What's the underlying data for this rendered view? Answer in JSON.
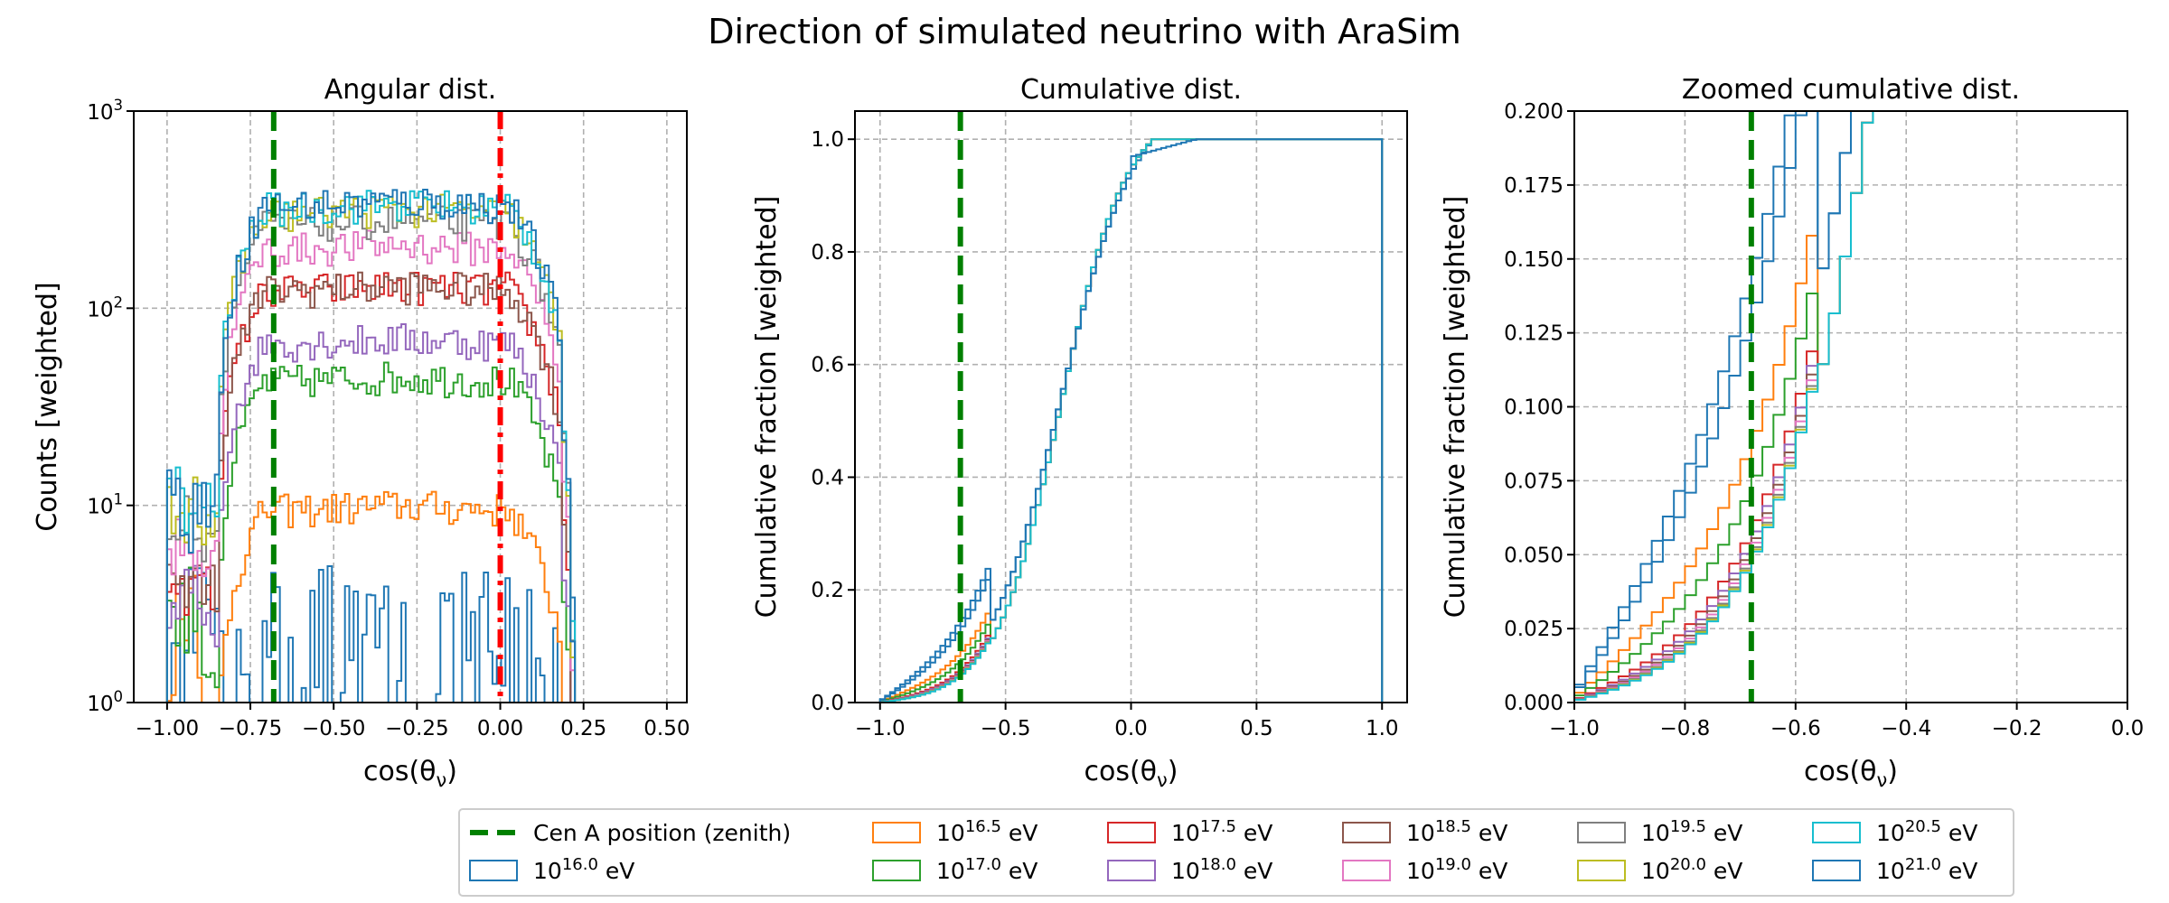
{
  "figure_title": "Direction of simulated neutrino with AraSim",
  "legend": {
    "cen_a_label": "Cen A position (zenith)",
    "entries": [
      {
        "base": "10",
        "exp": "16.0",
        "unit": " eV",
        "color": "#1f77b4"
      },
      {
        "base": "10",
        "exp": "16.5",
        "unit": " eV",
        "color": "#ff7f0e"
      },
      {
        "base": "10",
        "exp": "17.0",
        "unit": " eV",
        "color": "#2ca02c"
      },
      {
        "base": "10",
        "exp": "17.5",
        "unit": " eV",
        "color": "#d62728"
      },
      {
        "base": "10",
        "exp": "18.0",
        "unit": " eV",
        "color": "#9467bd"
      },
      {
        "base": "10",
        "exp": "18.5",
        "unit": " eV",
        "color": "#8c564b"
      },
      {
        "base": "10",
        "exp": "19.0",
        "unit": " eV",
        "color": "#e377c2"
      },
      {
        "base": "10",
        "exp": "19.5",
        "unit": " eV",
        "color": "#7f7f7f"
      },
      {
        "base": "10",
        "exp": "20.0",
        "unit": " eV",
        "color": "#bcbd22"
      },
      {
        "base": "10",
        "exp": "20.5",
        "unit": " eV",
        "color": "#17becf"
      },
      {
        "base": "10",
        "exp": "21.0",
        "unit": " eV",
        "color": "#1f77b4"
      }
    ],
    "cen_a_color": "#008000",
    "horizon_color": "#ff0000"
  },
  "chart_data": [
    {
      "type": "line",
      "subtype": "step-histogram",
      "title": "Angular dist.",
      "xlabel": "cos(θν)",
      "ylabel": "Counts [weighted]",
      "yscale": "log",
      "xlim": [
        -1.1,
        0.56
      ],
      "ylim": [
        1,
        1000
      ],
      "xticks": [
        "−1.00",
        "−0.75",
        "−0.50",
        "−0.25",
        "0.00",
        "0.25",
        "0.50"
      ],
      "yticks": [
        {
          "base": "10",
          "exp": "0"
        },
        {
          "base": "10",
          "exp": "1"
        },
        {
          "base": "10",
          "exp": "2"
        },
        {
          "base": "10",
          "exp": "3"
        }
      ],
      "grid": true,
      "vlines": [
        {
          "x": -0.68,
          "kind": "Cen A position (zenith)",
          "style": "dashed"
        },
        {
          "x": 0.0,
          "kind": "horizon",
          "style": "dashdot"
        }
      ],
      "series": [
        {
          "energy": "16.0",
          "color": "#1f77b4",
          "shape": "noise",
          "plateau": [
            1.5,
            3,
            5
          ]
        },
        {
          "energy": "16.5",
          "color": "#ff7f0e",
          "plateau": 10
        },
        {
          "energy": "17.0",
          "color": "#2ca02c",
          "plateau": 45
        },
        {
          "energy": "17.5",
          "color": "#d62728",
          "plateau": 130
        },
        {
          "energy": "18.0",
          "color": "#9467bd",
          "plateau": 70
        },
        {
          "energy": "18.5",
          "color": "#8c564b",
          "plateau": 130
        },
        {
          "energy": "19.0",
          "color": "#e377c2",
          "plateau": 210
        },
        {
          "energy": "19.5",
          "color": "#7f7f7f",
          "plateau": 280
        },
        {
          "energy": "20.0",
          "color": "#bcbd22",
          "plateau": 320
        },
        {
          "energy": "20.5",
          "color": "#17becf",
          "plateau": 340
        },
        {
          "energy": "21.0",
          "color": "#1f77b4",
          "plateau": 350
        }
      ]
    },
    {
      "type": "line",
      "subtype": "cumulative-step",
      "title": "Cumulative dist.",
      "xlabel": "cos(θν)",
      "ylabel": "Cumulative fraction [weighted]",
      "xlim": [
        -1.1,
        1.1
      ],
      "ylim": [
        0,
        1.05
      ],
      "xticks": [
        "−1.0",
        "−0.5",
        "0.0",
        "0.5",
        "1.0"
      ],
      "yticks": [
        "0.0",
        "0.2",
        "0.4",
        "0.6",
        "0.8",
        "1.0"
      ],
      "grid": true,
      "vlines": [
        {
          "x": -0.68,
          "kind": "Cen A position (zenith)",
          "style": "dashed"
        }
      ]
    },
    {
      "type": "line",
      "subtype": "cumulative-step-zoom",
      "title": "Zoomed cumulative dist.",
      "xlabel": "cos(θν)",
      "ylabel": "Cumulative fraction [weighted]",
      "xlim": [
        -1.0,
        0.0
      ],
      "ylim": [
        0,
        0.2
      ],
      "xticks": [
        "−1.0",
        "−0.8",
        "−0.6",
        "−0.4",
        "−0.2",
        "0.0"
      ],
      "yticks": [
        "0.000",
        "0.025",
        "0.050",
        "0.075",
        "0.100",
        "0.125",
        "0.150",
        "0.175",
        "0.200"
      ],
      "grid": true,
      "vlines": [
        {
          "x": -0.68,
          "kind": "Cen A position (zenith)",
          "style": "dashed"
        }
      ]
    }
  ]
}
